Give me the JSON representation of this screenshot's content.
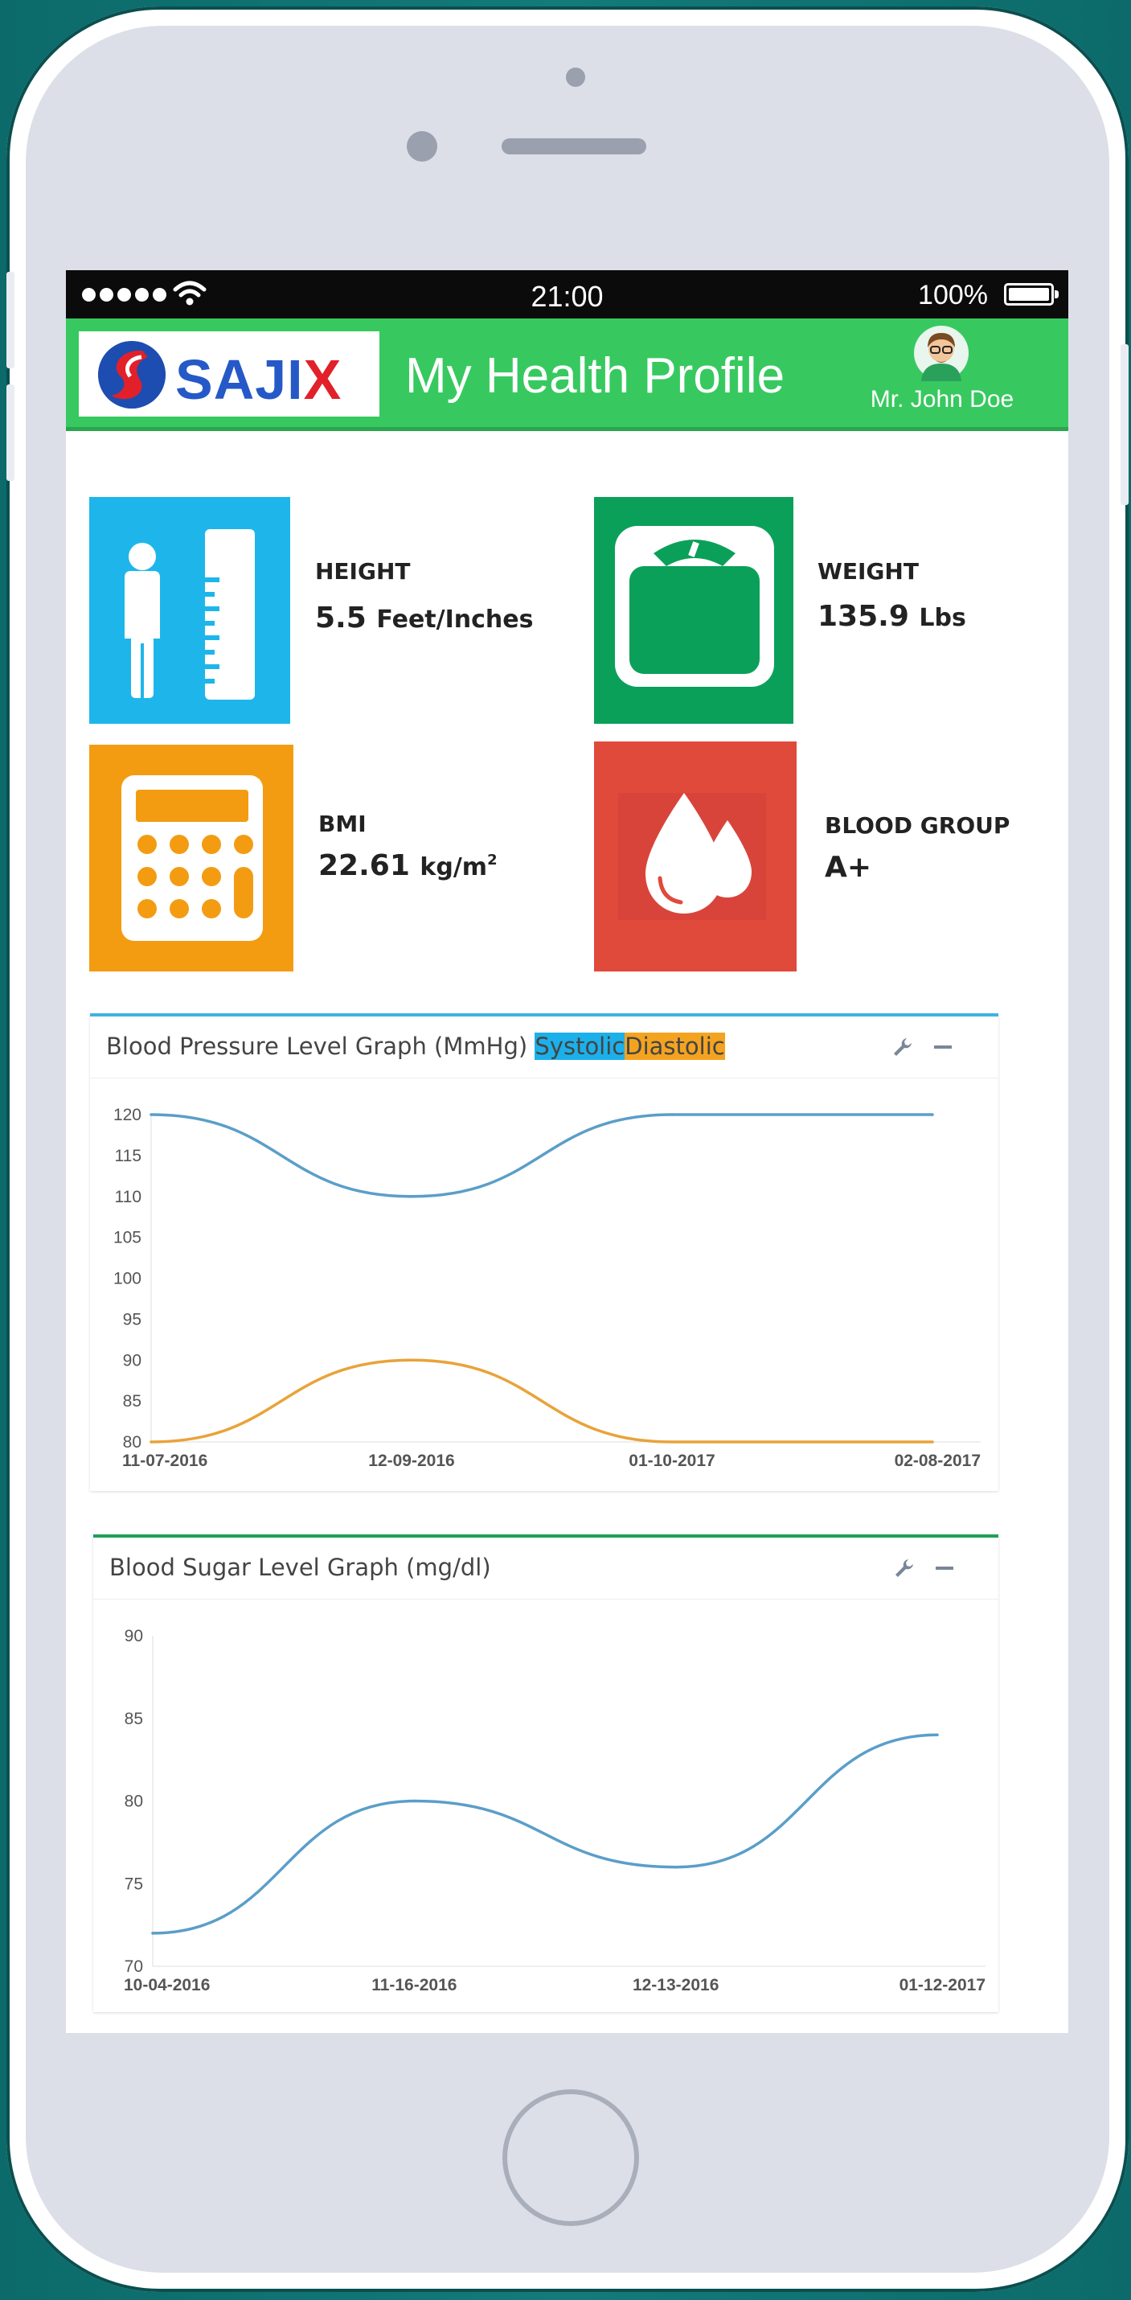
{
  "status_bar": {
    "time": "21:00",
    "battery": "100%"
  },
  "app_bar": {
    "logo": "SAJIX",
    "title": "My Health Profile",
    "user_name": "Mr. John Doe"
  },
  "metrics": {
    "height": {
      "label": "HEIGHT",
      "value": "5.5",
      "unit": "Feet/Inches",
      "icon": "height-ruler-icon",
      "color": "#1eb6ea"
    },
    "weight": {
      "label": "WEIGHT",
      "value": "135.9",
      "unit": "Lbs",
      "icon": "scale-icon",
      "color": "#0ba05a"
    },
    "bmi": {
      "label": "BMI",
      "value": "22.61",
      "unit": "kg/m",
      "unit_sup": "2",
      "icon": "calculator-icon",
      "color": "#f39c12"
    },
    "blood_group": {
      "label": "BLOOD GROUP",
      "value": "A+",
      "icon": "blood-drops-icon",
      "color": "#e04a3a"
    }
  },
  "bp_panel": {
    "title": "Blood Pressure Level Graph (MmHg)",
    "legend_systolic": "Systolic",
    "legend_diastolic": "Diastolic",
    "accent": "#3fb2e4"
  },
  "sugar_panel": {
    "title": "Blood Sugar Level Graph (mg/dl)",
    "accent": "#1fa05a"
  },
  "chart_data": [
    {
      "type": "line",
      "x": [
        "11-07-2016",
        "12-09-2016",
        "01-10-2017",
        "02-08-2017"
      ],
      "series": [
        {
          "name": "Systolic",
          "values": [
            120,
            110,
            120,
            120
          ],
          "color": "#5b9ec9"
        },
        {
          "name": "Diastolic",
          "values": [
            80,
            90,
            80,
            80
          ],
          "color": "#e8a33a"
        }
      ],
      "ylim": [
        80,
        120
      ],
      "yticks": [
        120,
        115,
        110,
        105,
        100,
        95,
        90,
        85,
        80
      ],
      "xlabel": "",
      "ylabel": ""
    },
    {
      "type": "line",
      "x": [
        "10-04-2016",
        "11-16-2016",
        "12-13-2016",
        "01-12-2017"
      ],
      "series": [
        {
          "values": [
            72,
            80,
            76,
            84
          ],
          "color": "#5b9ec9"
        }
      ],
      "ylim": [
        70,
        90
      ],
      "yticks": [
        90,
        85,
        80,
        75,
        70
      ],
      "xlabel": "",
      "ylabel": ""
    }
  ]
}
